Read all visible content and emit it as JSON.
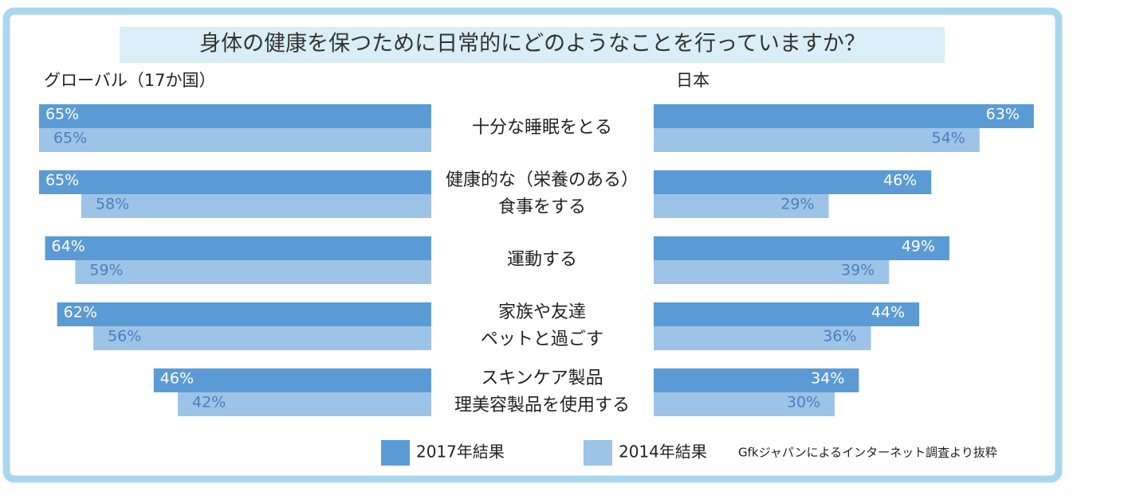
{
  "chart_data": {
    "type": "bar",
    "title": "身体の健康を保つために日常的にどのようなことを行っていますか？",
    "categories": [
      "十分な睡眠をとる",
      "健康的な（栄養のある）\n食事をする",
      "運動する",
      "家族や友達\nペットと過ごす",
      "スキンケア製品\n理美容製品を使用する"
    ],
    "legend": [
      {
        "name": "2017年結果",
        "color": "#5b9bd5"
      },
      {
        "name": "2014年結果",
        "color": "#9dc3e6"
      }
    ],
    "panels": [
      {
        "label": "グローバル（17か国）",
        "direction": "left",
        "series": [
          {
            "values": [
              65,
              65,
              64,
              62,
              46
            ],
            "value_labels": [
              "65%",
              "65%",
              "64%",
              "62%",
              "46%"
            ]
          },
          {
            "values": [
              65,
              58,
              59,
              56,
              42
            ],
            "value_labels": [
              "65%",
              "58%",
              "59%",
              "56%",
              "42%"
            ]
          }
        ]
      },
      {
        "label": "日本",
        "direction": "right",
        "series": [
          {
            "values": [
              63,
              46,
              49,
              44,
              34
            ],
            "value_labels": [
              "63%",
              "46%",
              "49%",
              "44%",
              "34%"
            ]
          },
          {
            "values": [
              54,
              29,
              39,
              36,
              30
            ],
            "value_labels": [
              "54%",
              "29%",
              "39%",
              "36%",
              "30%"
            ]
          }
        ]
      }
    ],
    "source": "Gfkジャパンによるインターネット調査より抜粋"
  }
}
